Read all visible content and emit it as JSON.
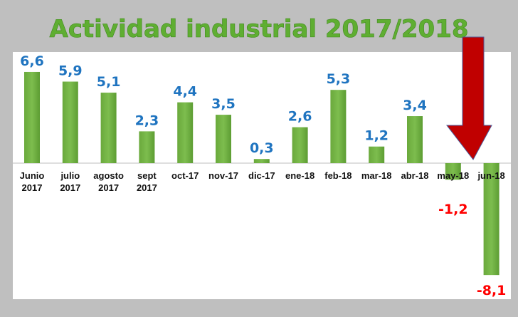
{
  "chart_data": {
    "type": "bar",
    "title": "Actividad industrial 2017/2018",
    "categories": [
      [
        "Junio",
        "2017"
      ],
      [
        "julio",
        "2017"
      ],
      [
        "agosto",
        "2017"
      ],
      [
        "sept",
        "2017"
      ],
      [
        "oct-17"
      ],
      [
        "nov-17"
      ],
      [
        "dic-17"
      ],
      [
        "ene-18"
      ],
      [
        "feb-18"
      ],
      [
        "mar-18"
      ],
      [
        "abr-18"
      ],
      [
        "may-18"
      ],
      [
        "jun-18"
      ]
    ],
    "values": [
      6.6,
      5.9,
      5.1,
      2.3,
      4.4,
      3.5,
      0.3,
      2.6,
      5.3,
      1.2,
      3.4,
      -1.2,
      -8.1
    ],
    "value_labels": [
      "6,6",
      "5,9",
      "5,1",
      "2,3",
      "4,4",
      "3,5",
      "0,3",
      "2,6",
      "5,3",
      "1,2",
      "3,4",
      "-1,2",
      "-8,1"
    ],
    "xlabel": "",
    "ylabel": "",
    "ylim": [
      -10,
      7.5
    ],
    "grid": false,
    "annotation": "red-down-arrow",
    "colors": {
      "bar": "#6db33f",
      "positive_label": "#1f74c0",
      "negative_label": "#ff0000",
      "arrow": "#c00000",
      "arrow_outline": "#4a5a9a",
      "background": "#bfbfbf",
      "plot": "#ffffff"
    }
  }
}
